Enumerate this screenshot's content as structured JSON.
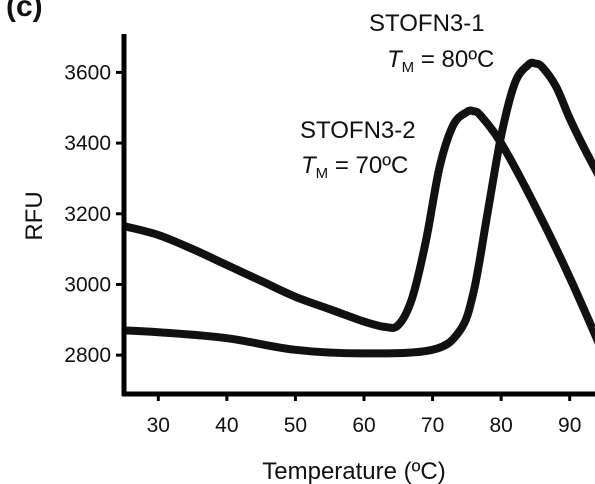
{
  "panel_label": "(c)",
  "chart_data": {
    "type": "line",
    "title": "",
    "xlabel": "Temperature (ºC)",
    "ylabel": "RFU",
    "xlim": [
      25,
      95
    ],
    "ylim": [
      2690,
      3720
    ],
    "xticks": [
      30,
      40,
      50,
      60,
      70,
      80,
      90
    ],
    "yticks": [
      2800,
      3000,
      3200,
      3400,
      3600
    ],
    "series": [
      {
        "x": [
          25,
          30,
          35,
          40,
          45,
          50,
          55,
          60,
          63,
          65,
          67,
          69,
          71,
          73,
          75,
          76,
          77,
          80,
          85,
          90,
          95
        ],
        "y": [
          3165,
          3140,
          3100,
          3055,
          3010,
          2965,
          2930,
          2895,
          2880,
          2885,
          2960,
          3120,
          3330,
          3450,
          3488,
          3490,
          3478,
          3400,
          3220,
          3020,
          2800
        ]
      },
      {
        "x": [
          25,
          30,
          40,
          50,
          60,
          70,
          74,
          76,
          78,
          80,
          82,
          84,
          85,
          86,
          88,
          90,
          92,
          95
        ],
        "y": [
          2870,
          2865,
          2848,
          2815,
          2805,
          2815,
          2870,
          2980,
          3200,
          3420,
          3570,
          3622,
          3625,
          3615,
          3560,
          3470,
          3390,
          3280
        ]
      }
    ],
    "annotations": [
      {
        "line1": "STOFN3-1",
        "line2_prefix": "T",
        "line2_subscript": "M",
        "line2_suffix": " = 80ºC"
      },
      {
        "line1": "STOFN3-2",
        "line2_prefix": "T",
        "line2_subscript": "M",
        "line2_suffix": " = 70ºC"
      }
    ],
    "grid": false,
    "legend": "none"
  }
}
